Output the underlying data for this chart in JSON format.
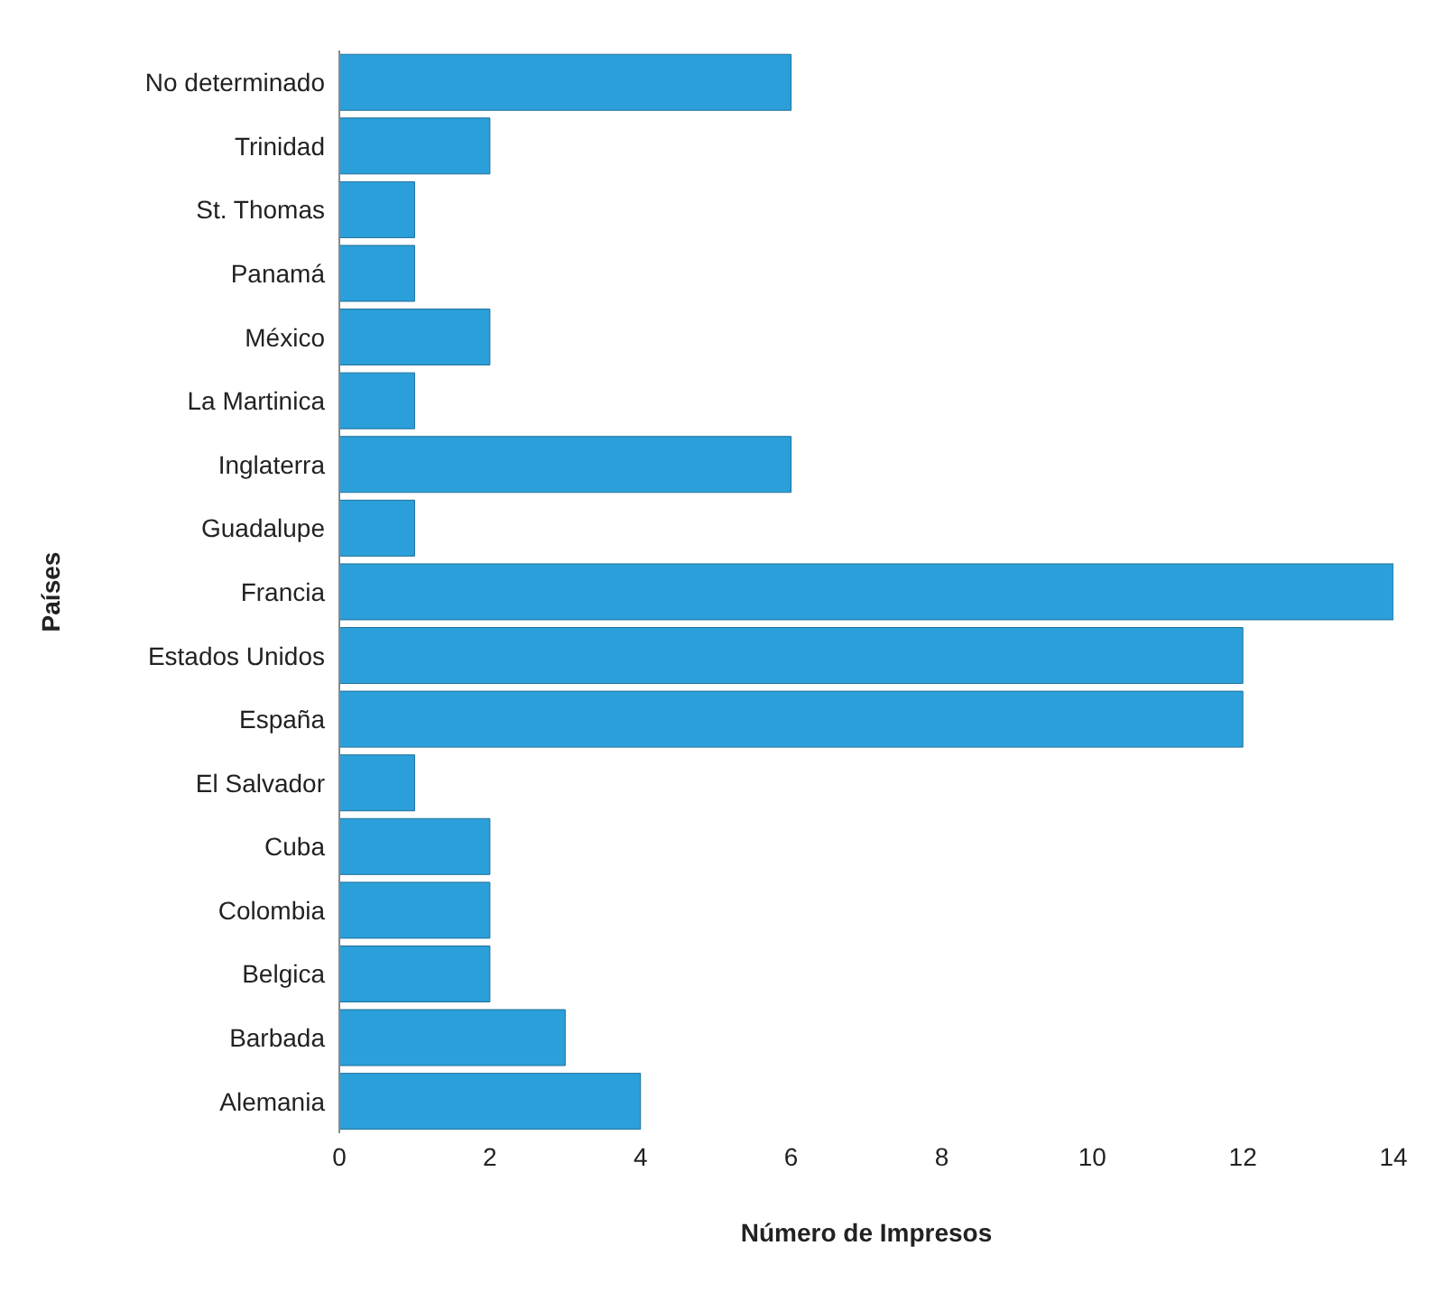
{
  "chart_data": {
    "type": "bar",
    "orientation": "horizontal",
    "xlabel": "Número de Impresos",
    "ylabel": "Países",
    "categories": [
      "No determinado",
      "Trinidad",
      "St. Thomas",
      "Panamá",
      "México",
      "La Martinica",
      "Inglaterra",
      "Guadalupe",
      "Francia",
      "Estados Unidos",
      "España",
      "El Salvador",
      "Cuba",
      "Colombia",
      "Belgica",
      "Barbada",
      "Alemania"
    ],
    "values": [
      6,
      2,
      1,
      1,
      2,
      1,
      6,
      1,
      14,
      12,
      12,
      1,
      2,
      2,
      2,
      3,
      4
    ],
    "color": "#2b9fd9",
    "xlim": [
      0,
      14
    ],
    "xticks": [
      0,
      2,
      4,
      6,
      8,
      10,
      12,
      14
    ]
  }
}
